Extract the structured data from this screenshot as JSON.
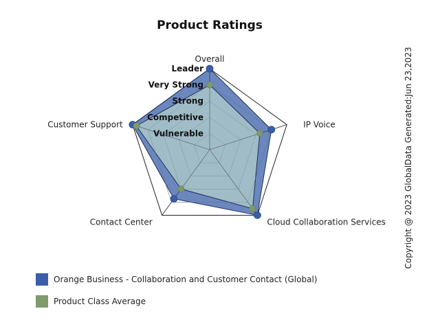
{
  "chart_data": {
    "type": "radar",
    "title": "Product Ratings",
    "axes": [
      "Overall",
      "IP Voice",
      "Cloud Collaboration Services",
      "Contact Center",
      "Customer Support"
    ],
    "levels": [
      "Vulnerable",
      "Competitive",
      "Strong",
      "Very Strong",
      "Leader"
    ],
    "range": [
      0,
      5
    ],
    "grid": true,
    "series": [
      {
        "name": "Orange Business - Collaboration and Customer Contact (Global)",
        "color": "#3A5FA8",
        "values": [
          5.0,
          4.0,
          5.0,
          3.75,
          5.0
        ]
      },
      {
        "name": "Product Class Average",
        "color": "#7F9A6B",
        "values": [
          4.0,
          3.25,
          4.5,
          3.0,
          4.75
        ]
      }
    ],
    "legend_position": "bottom-left"
  },
  "copyright": "Copyright @ 2023 GlobalData Generated:Jun 23,2023"
}
